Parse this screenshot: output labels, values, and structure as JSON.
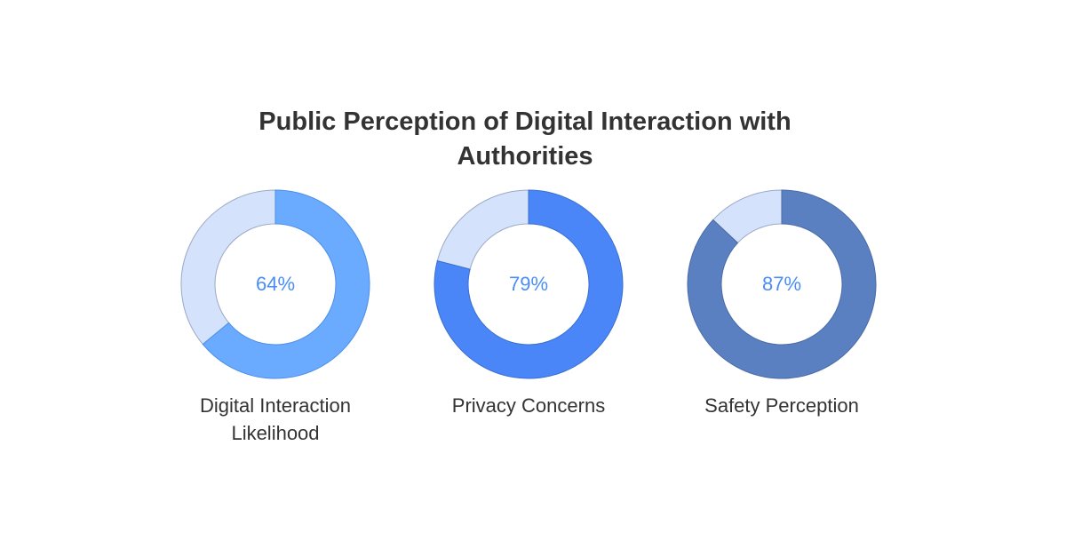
{
  "title": "Public Perception of Digital Interaction with Authorities",
  "chart_data": [
    {
      "type": "donut",
      "label": "Digital Interaction Likelihood",
      "values": [
        64
      ],
      "value_labels": [
        "64%"
      ],
      "color": "#6aaaff",
      "stroke": "#4d8ee8",
      "rest_color": "#d5e2fb"
    },
    {
      "type": "donut",
      "label": "Privacy Concerns",
      "values": [
        79
      ],
      "value_labels": [
        "79%"
      ],
      "color": "#4a86f7",
      "stroke": "#3a6fd0",
      "rest_color": "#d5e2fb"
    },
    {
      "type": "donut",
      "label": "Safety Perception",
      "values": [
        87
      ],
      "value_labels": [
        "87%"
      ],
      "color": "#5b80c2",
      "stroke": "#4a6aa5",
      "rest_color": "#d5e2fb"
    }
  ]
}
